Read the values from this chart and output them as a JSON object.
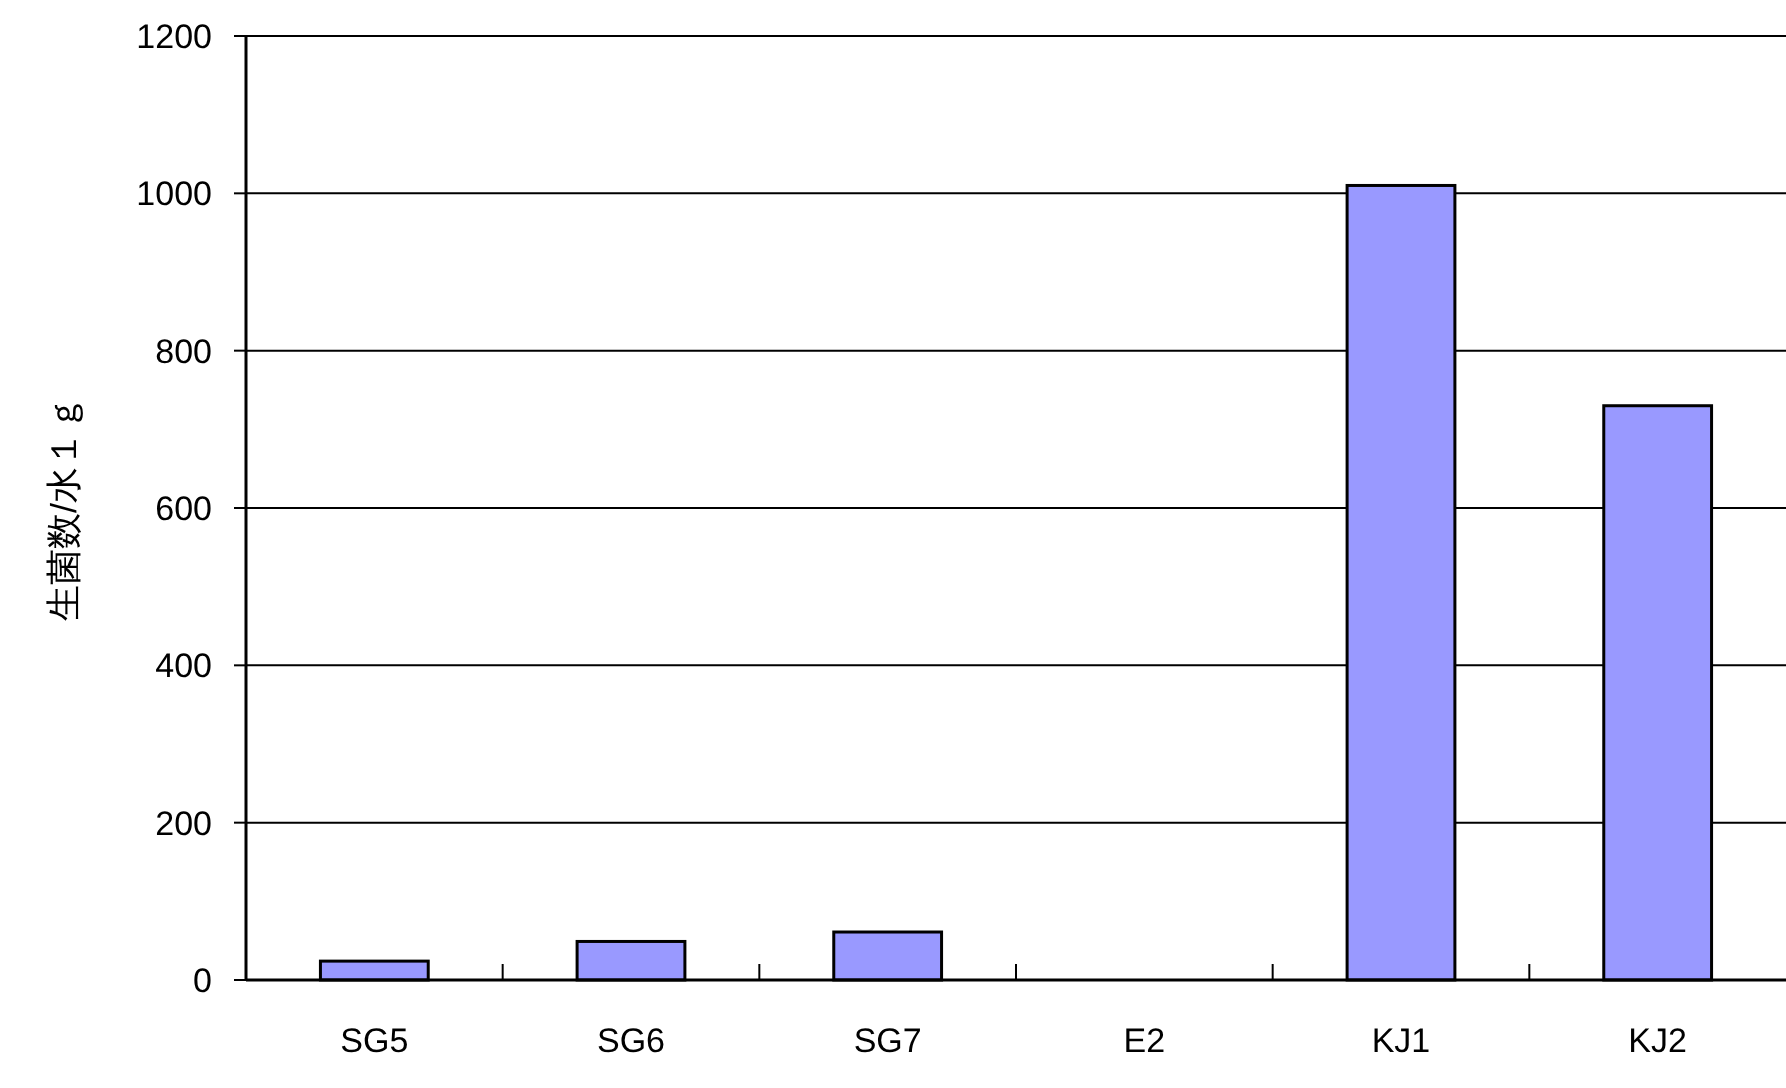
{
  "chart_data": {
    "type": "bar",
    "ylabel": "生菌数/水１ｇ",
    "categories": [
      "SG5",
      "SG6",
      "SG7",
      "E2",
      "KJ1",
      "KJ2"
    ],
    "values": [
      24,
      49,
      61,
      0,
      1010,
      730
    ],
    "color": "#9999ff",
    "ylim": [
      0,
      1200
    ],
    "yticks": [
      0,
      200,
      400,
      600,
      800,
      1000,
      1200
    ],
    "grid": "y"
  }
}
